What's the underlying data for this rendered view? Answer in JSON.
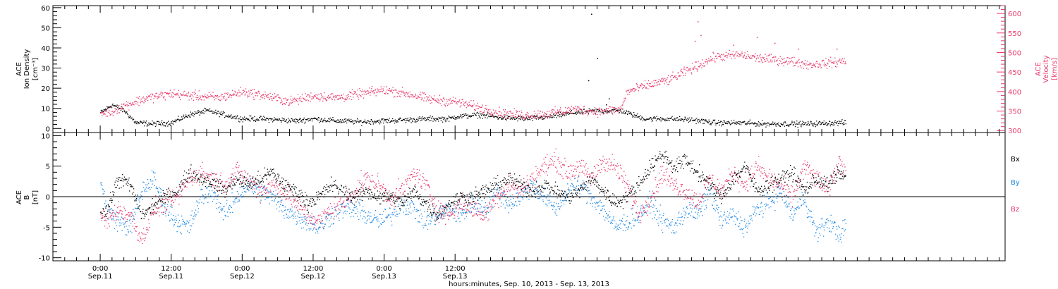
{
  "chart_data": [
    {
      "type": "scatter",
      "panel": "plasma",
      "y_left": {
        "label_lines": [
          "ACE",
          "Ion Density",
          "[cm⁻³]"
        ],
        "range": [
          -2,
          61
        ],
        "ticks": [
          0,
          10,
          20,
          30,
          40,
          50,
          60
        ]
      },
      "y_right": {
        "label_lines": [
          "ACE",
          "Velocity",
          "[km/s]"
        ],
        "range": [
          295,
          620
        ],
        "ticks": [
          300,
          350,
          400,
          450,
          500,
          550,
          600
        ]
      },
      "series": [
        {
          "key": "density",
          "axis": "left",
          "color": "#000000",
          "x": [
            0,
            2,
            4,
            6,
            9,
            12,
            15,
            18,
            21,
            24,
            27,
            30,
            33,
            36,
            40,
            44,
            48,
            52,
            56,
            59,
            60,
            64,
            68,
            72,
            76,
            80,
            84,
            88,
            92,
            96,
            100,
            104,
            108,
            112,
            116,
            120,
            124,
            126
          ],
          "y": [
            8,
            12,
            9,
            3,
            2.5,
            3,
            7,
            9,
            7,
            5,
            5,
            4.5,
            4,
            5,
            4,
            3.5,
            4,
            4.5,
            5,
            5,
            6,
            7,
            5.5,
            5,
            6,
            8,
            9,
            9,
            5,
            5,
            4.5,
            3,
            3,
            2.5,
            2.5,
            2.5,
            3,
            3
          ]
        },
        {
          "key": "velocity",
          "axis": "right",
          "color": "#e8376a",
          "x": [
            0,
            2,
            4,
            8,
            12,
            16,
            20,
            24,
            28,
            32,
            36,
            40,
            44,
            48,
            52,
            56,
            60,
            64,
            68,
            72,
            76,
            80,
            84,
            88,
            89,
            92,
            96,
            100,
            104,
            108,
            112,
            116,
            120,
            124,
            126
          ],
          "y": [
            345,
            350,
            365,
            385,
            395,
            390,
            385,
            400,
            390,
            375,
            390,
            385,
            395,
            405,
            395,
            380,
            375,
            360,
            345,
            340,
            345,
            355,
            350,
            355,
            400,
            415,
            430,
            460,
            490,
            495,
            485,
            480,
            470,
            475,
            480
          ]
        }
      ],
      "outliers": [
        {
          "series": "density",
          "x": [
            83,
            84,
            82.5,
            86,
            85.5
          ],
          "y": [
            57,
            35,
            24,
            15,
            12
          ]
        },
        {
          "series": "velocity",
          "x": [
            101,
            101.5,
            100.5,
            107,
            111,
            114,
            118,
            124.5
          ],
          "y": [
            580,
            545,
            530,
            520,
            540,
            525,
            510,
            510
          ]
        }
      ]
    },
    {
      "type": "scatter",
      "panel": "magnetic_field",
      "y_left": {
        "label_lines": [
          "ACE",
          "B",
          "[nT]"
        ],
        "range": [
          -10.5,
          10.5
        ],
        "ticks": [
          -10,
          -5,
          0,
          5,
          10
        ]
      },
      "zero_line": true,
      "series": [
        {
          "name": "Bx",
          "key": "bx",
          "color": "#000000",
          "x": [
            0,
            1,
            3,
            5,
            7,
            9,
            11,
            13,
            15,
            17,
            19,
            21,
            23,
            25,
            27,
            29,
            31,
            33,
            35,
            37,
            39,
            41,
            43,
            45,
            47,
            49,
            51,
            53,
            55,
            57,
            59,
            61,
            63,
            65,
            67,
            69,
            71,
            73,
            75,
            77,
            79,
            81,
            83,
            85,
            87,
            89,
            91,
            93,
            95,
            97,
            99,
            101,
            103,
            105,
            107,
            109,
            111,
            113,
            115,
            117,
            119,
            121,
            123,
            125,
            126
          ],
          "y": [
            -2,
            -2.5,
            3,
            2,
            -3,
            -1.5,
            0,
            1,
            4,
            3,
            2.5,
            1,
            3,
            2,
            3,
            4,
            2,
            1,
            -1,
            0,
            2,
            1,
            0,
            1,
            0,
            0,
            -1,
            1,
            -1,
            -3,
            -1,
            0,
            0,
            1,
            2,
            3,
            2,
            1,
            2,
            1,
            0,
            1,
            3,
            1,
            -1,
            0,
            2,
            5,
            7,
            5,
            6,
            4,
            2,
            0,
            3,
            5,
            1,
            2,
            3,
            4,
            1,
            3,
            2,
            4,
            3
          ]
        },
        {
          "name": "By",
          "key": "by",
          "color": "#1e88e5",
          "x": [
            0,
            1,
            3,
            5,
            7,
            9,
            11,
            13,
            15,
            17,
            19,
            21,
            23,
            25,
            27,
            29,
            31,
            33,
            35,
            37,
            39,
            41,
            43,
            45,
            47,
            49,
            51,
            53,
            55,
            57,
            59,
            61,
            63,
            65,
            67,
            69,
            71,
            73,
            75,
            77,
            79,
            81,
            83,
            85,
            87,
            89,
            91,
            93,
            95,
            97,
            99,
            101,
            103,
            105,
            107,
            109,
            111,
            113,
            115,
            117,
            119,
            121,
            123,
            125,
            126
          ],
          "y": [
            3,
            -2,
            -4,
            -5,
            1,
            3,
            -2,
            -4,
            -5,
            0,
            1,
            -3,
            0,
            2,
            1,
            0,
            -2,
            -3,
            -4,
            -5,
            -3,
            -2,
            -2,
            -3,
            -4,
            -3,
            -1,
            -2,
            -4,
            -3,
            -2,
            -3,
            -1,
            -2,
            1,
            -1,
            0,
            2,
            0,
            -2,
            1,
            2,
            0,
            -2,
            -5,
            -4,
            -3,
            -1,
            -4,
            -5,
            -2,
            -3,
            1,
            -4,
            -3,
            -5,
            -2,
            -1,
            1,
            -3,
            0,
            -6,
            -4,
            -6,
            -5
          ]
        },
        {
          "name": "Bz",
          "key": "bz",
          "color": "#e8376a",
          "x": [
            0,
            1,
            3,
            5,
            7,
            9,
            11,
            13,
            15,
            17,
            19,
            21,
            23,
            25,
            27,
            29,
            31,
            33,
            35,
            37,
            39,
            41,
            43,
            45,
            47,
            49,
            51,
            53,
            55,
            57,
            59,
            61,
            63,
            65,
            67,
            69,
            71,
            73,
            75,
            77,
            79,
            81,
            83,
            85,
            87,
            89,
            91,
            93,
            95,
            97,
            99,
            101,
            103,
            105,
            107,
            109,
            111,
            113,
            115,
            117,
            119,
            121,
            123,
            125,
            126
          ],
          "y": [
            -3,
            -4,
            -2,
            -3,
            -7,
            -2,
            -1,
            0,
            3,
            4,
            3,
            2,
            4,
            3,
            1,
            2,
            1,
            -1,
            -3,
            -4,
            -2,
            -1,
            1,
            3,
            2,
            0,
            1,
            4,
            2,
            -2,
            -3,
            -1,
            -2,
            -3,
            0,
            2,
            1,
            3,
            5,
            6,
            4,
            5,
            3,
            6,
            5,
            2,
            -3,
            0,
            4,
            2,
            1,
            -1,
            3,
            1,
            4,
            2,
            5,
            3,
            2,
            0,
            5,
            3,
            1,
            6,
            4
          ]
        }
      ],
      "legend_placement": "right"
    }
  ],
  "x_axis": {
    "range_hours": [
      -8,
      153
    ],
    "tick_hours": [
      0,
      12,
      24,
      36,
      48,
      60
    ],
    "tick_labels": [
      [
        "0:00",
        "Sep.11"
      ],
      [
        "12:00",
        "Sep.11"
      ],
      [
        "0:00",
        "Sep.12"
      ],
      [
        "12:00",
        "Sep.12"
      ],
      [
        "0:00",
        "Sep.13"
      ],
      [
        "12:00",
        "Sep.13"
      ]
    ],
    "title": "hours:minutes, Sep. 10, 2013 - Sep. 13, 2013"
  },
  "colors": {
    "density": "#000000",
    "velocity": "#e8376a",
    "bx": "#000000",
    "by": "#1e88e5",
    "bz": "#e8376a"
  }
}
